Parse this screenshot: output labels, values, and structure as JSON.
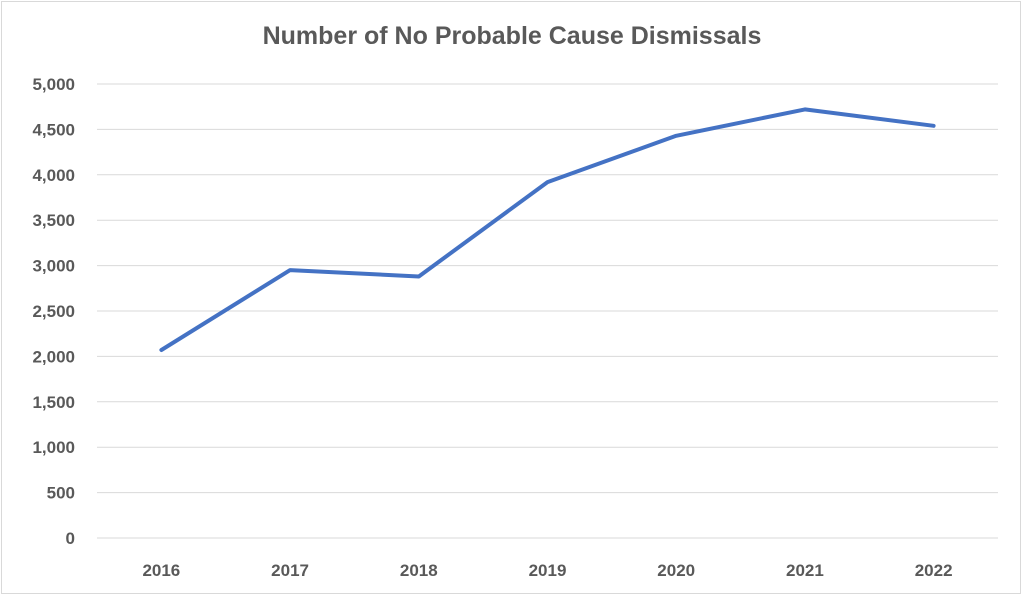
{
  "chart_data": {
    "type": "line",
    "title": "Number of No Probable Cause Dismissals",
    "xlabel": "",
    "ylabel": "",
    "x": [
      "2016",
      "2017",
      "2018",
      "2019",
      "2020",
      "2021",
      "2022"
    ],
    "series": [
      {
        "values": [
          2070,
          2950,
          2880,
          3920,
          4430,
          4720,
          4540
        ],
        "color": "#4472c4"
      }
    ],
    "ylim": [
      0,
      5000
    ],
    "yticks": [
      0,
      500,
      1000,
      1500,
      2000,
      2500,
      3000,
      3500,
      4000,
      4500,
      5000
    ],
    "ytick_labels": [
      "0",
      "500",
      "1,000",
      "1,500",
      "2,000",
      "2,500",
      "3,000",
      "3,500",
      "4,000",
      "4,500",
      "5,000"
    ],
    "grid": true,
    "legend": "none"
  }
}
